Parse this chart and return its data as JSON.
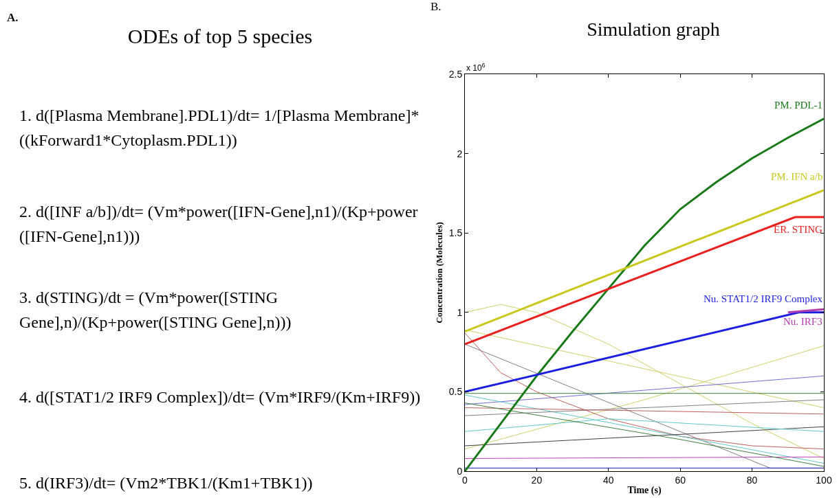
{
  "chart_data": [
    {
      "type": "other",
      "title": "ODEs of top 5 species",
      "annotations": [
        "A.",
        "1. d([Plasma Membrane].PDL1)/dt= 1/[Plasma Membrane]*((kForward1*Cytoplasm.PDL1))",
        "2. d([INF a/b])/dt= (Vm*power([IFN-Gene],n1)/(Kp+power ([IFN-Gene],n1)))",
        "3. d(STING)/dt = (Vm*power([STING Gene],n)/(Kp+power([STING Gene],n)))",
        "4. d([STAT1/2 IRF9 Complex])/dt= (Vm*IRF9/(Km+IRF9))",
        "5. d(IRF3)/dt= (Vm2*TBK1/(Km1+TBK1))"
      ]
    },
    {
      "type": "line",
      "title": "Simulation graph",
      "xlabel": "Time (s)",
      "ylabel": "Concentration (Molecules)",
      "annotations": [
        "B.",
        "x 10$^{6}$"
      ],
      "xlim": [
        0,
        100
      ],
      "ylim": [
        0,
        2.5
      ],
      "xticks": [
        0,
        20,
        40,
        60,
        80,
        100
      ],
      "yticks": [
        0,
        0.5,
        1,
        1.5,
        2,
        2.5
      ],
      "series": [
        {
          "name": "PM. PDL-1",
          "color": "#1a7a1a",
          "x": [
            0,
            10,
            20,
            30,
            40,
            50,
            60,
            70,
            80,
            90,
            100
          ],
          "values": [
            0,
            0.3,
            0.6,
            0.88,
            1.15,
            1.42,
            1.65,
            1.82,
            1.97,
            2.1,
            2.22
          ]
        },
        {
          "name": "PM. IFN a/b",
          "color": "#c8c81e",
          "x": [
            0,
            100
          ],
          "values": [
            0.88,
            1.77
          ]
        },
        {
          "name": "ER. STING",
          "color": "#e8201e",
          "x": [
            0,
            92,
            100
          ],
          "values": [
            0.8,
            1.6,
            1.6
          ]
        },
        {
          "name": "Nu. STAT1/2 IRF9 Complex",
          "color": "#1e1ee0",
          "x": [
            0,
            93,
            100
          ],
          "values": [
            0.5,
            1.0,
            1.0
          ]
        },
        {
          "name": "Nu. IRF3",
          "color": "#b03cb0",
          "x": [
            90,
            100
          ],
          "values": [
            1.0,
            1.02
          ]
        },
        {
          "color": "#d0d070",
          "x": [
            0,
            10,
            20,
            40,
            60,
            80,
            100
          ],
          "values": [
            1.0,
            1.05,
            1.0,
            0.8,
            0.55,
            0.3,
            0.08
          ]
        },
        {
          "color": "#d0d070",
          "x": [
            0,
            100
          ],
          "values": [
            0.89,
            0.4
          ]
        },
        {
          "color": "#d0d070",
          "x": [
            0,
            50,
            100
          ],
          "values": [
            0.14,
            0.45,
            0.79
          ]
        },
        {
          "color": "#808080",
          "x": [
            0,
            85,
            100
          ],
          "values": [
            0.8,
            0.02,
            0.02
          ]
        },
        {
          "color": "#c06060",
          "x": [
            0,
            10,
            20,
            40,
            60,
            80,
            100
          ],
          "values": [
            0.87,
            0.62,
            0.5,
            0.33,
            0.22,
            0.16,
            0.14
          ]
        },
        {
          "color": "#7070d0",
          "x": [
            0,
            100
          ],
          "values": [
            0.42,
            0.6
          ]
        },
        {
          "color": "#408040",
          "x": [
            0,
            100
          ],
          "values": [
            0.49,
            0.49
          ]
        },
        {
          "color": "#60c8c8",
          "x": [
            0,
            30,
            60,
            100
          ],
          "values": [
            0.48,
            0.35,
            0.22,
            0.05
          ]
        },
        {
          "color": "#808080",
          "x": [
            0,
            100
          ],
          "values": [
            0.35,
            0.45
          ]
        },
        {
          "color": "#c06060",
          "x": [
            0,
            100
          ],
          "values": [
            0.4,
            0.36
          ]
        },
        {
          "color": "#404040",
          "x": [
            0,
            100
          ],
          "values": [
            0.16,
            0.28
          ]
        },
        {
          "color": "#60c8c8",
          "x": [
            0,
            40,
            100
          ],
          "values": [
            0.25,
            0.33,
            0.25
          ]
        },
        {
          "color": "#c040c0",
          "x": [
            0,
            100
          ],
          "values": [
            0.08,
            0.09
          ]
        },
        {
          "color": "#408040",
          "x": [
            0,
            60,
            100
          ],
          "values": [
            0.43,
            0.2,
            0.03
          ]
        },
        {
          "color": "#2020c0",
          "x": [
            0,
            100
          ],
          "values": [
            0.02,
            0.02
          ]
        }
      ]
    }
  ]
}
